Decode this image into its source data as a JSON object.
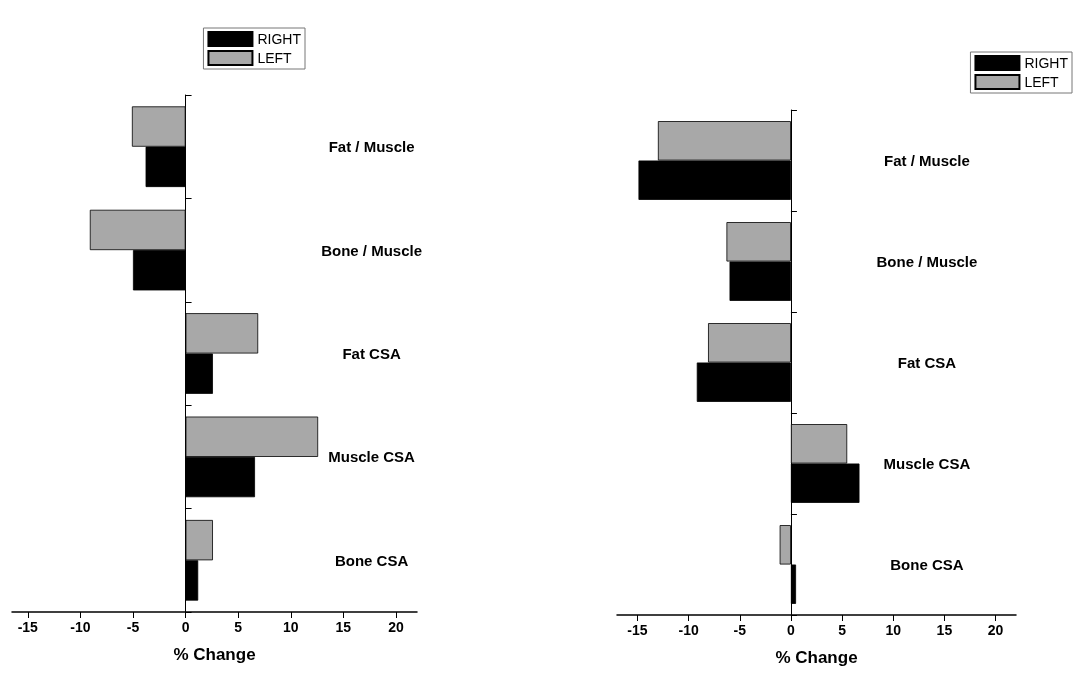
{
  "chart_data": [
    {
      "type": "bar",
      "orientation": "horizontal",
      "categories": [
        "Fat / Muscle",
        "Bone / Muscle",
        "Fat CSA",
        "Muscle CSA",
        "Bone CSA"
      ],
      "xlabel": "% Change",
      "xlim": [
        -16.5,
        22
      ],
      "xticks": [
        -15,
        -10,
        -5,
        0,
        5,
        10,
        15,
        20
      ],
      "legend": "top right",
      "series": [
        {
          "name": "RIGHT",
          "color": "#000000",
          "values": [
            -3.8,
            -5.0,
            2.6,
            6.6,
            1.2
          ]
        },
        {
          "name": "LEFT",
          "color": "#a8a8a8",
          "values": [
            -5.1,
            -9.1,
            6.9,
            12.6,
            2.6
          ]
        }
      ]
    },
    {
      "type": "bar",
      "orientation": "horizontal",
      "categories": [
        "Fat / Muscle",
        "Bone / Muscle",
        "Fat CSA",
        "Muscle CSA",
        "Bone CSA"
      ],
      "xlabel": "% Change",
      "xlim": [
        -17,
        22
      ],
      "xticks": [
        -15,
        -10,
        -5,
        0,
        5,
        10,
        15,
        20
      ],
      "legend": "top right",
      "series": [
        {
          "name": "RIGHT",
          "color": "#000000",
          "values": [
            -14.9,
            -6.0,
            -9.2,
            6.7,
            0.5
          ]
        },
        {
          "name": "LEFT",
          "color": "#a8a8a8",
          "values": [
            -13.0,
            -6.3,
            -8.1,
            5.5,
            -1.1
          ]
        }
      ]
    }
  ]
}
